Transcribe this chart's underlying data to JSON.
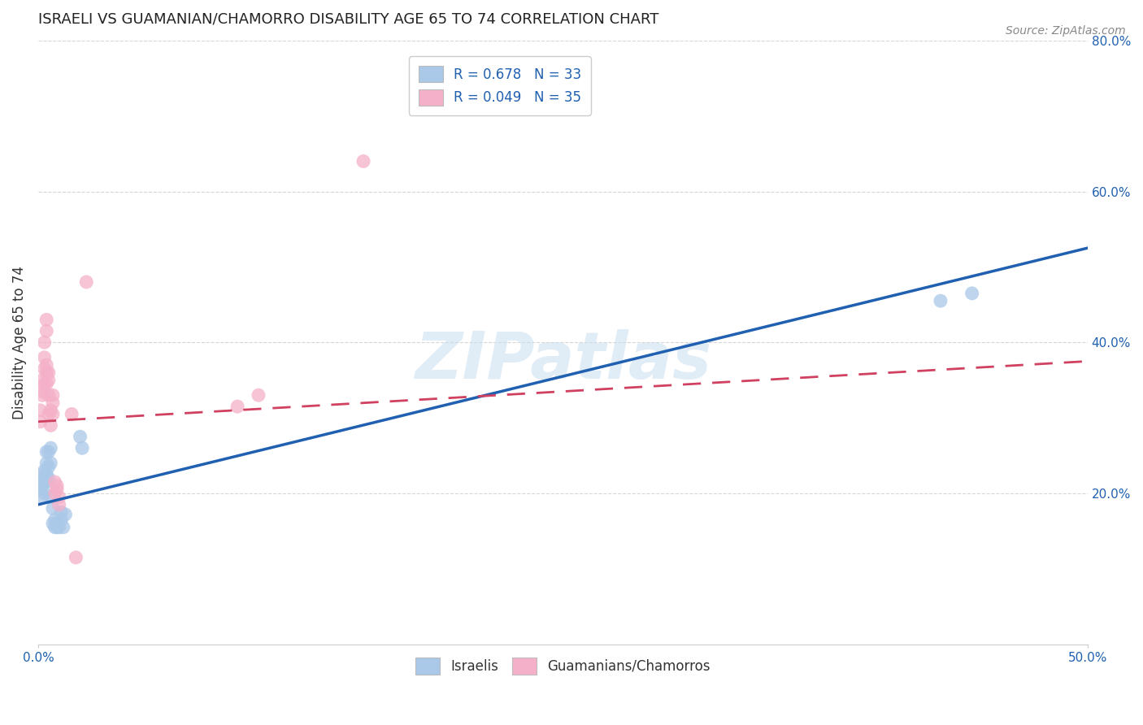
{
  "title": "ISRAELI VS GUAMANIAN/CHAMORRO DISABILITY AGE 65 TO 74 CORRELATION CHART",
  "source": "Source: ZipAtlas.com",
  "ylabel": "Disability Age 65 to 74",
  "xmin": 0.0,
  "xmax": 0.5,
  "ymin": 0.0,
  "ymax": 0.8,
  "xticks": [
    0.0,
    0.5
  ],
  "yticks": [
    0.2,
    0.4,
    0.6,
    0.8
  ],
  "xtick_labels": [
    "0.0%",
    "50.0%"
  ],
  "ytick_labels": [
    "20.0%",
    "40.0%",
    "60.0%",
    "80.0%"
  ],
  "legend_items": [
    {
      "label": "R = 0.678   N = 33",
      "color": "#aac8e8"
    },
    {
      "label": "R = 0.049   N = 35",
      "color": "#f4b0c8"
    }
  ],
  "legend_labels_bottom": [
    "Israelis",
    "Guamanians/Chamorros"
  ],
  "israeli_color": "#aac8e8",
  "guamanian_color": "#f4b0c8",
  "israeli_line_color": "#2060b0",
  "guamanian_line_color": "#d04060",
  "watermark": "ZIPatlas",
  "israeli_R": 0.678,
  "israeli_N": 33,
  "guamanian_R": 0.049,
  "guamanian_N": 35,
  "israeli_line_x0": 0.0,
  "israeli_line_y0": 0.185,
  "israeli_line_x1": 0.5,
  "israeli_line_y1": 0.525,
  "guamanian_line_x0": 0.0,
  "guamanian_line_y0": 0.295,
  "guamanian_line_x1": 0.5,
  "guamanian_line_y1": 0.375,
  "israeli_scatter": [
    [
      0.001,
      0.205
    ],
    [
      0.002,
      0.21
    ],
    [
      0.002,
      0.225
    ],
    [
      0.002,
      0.195
    ],
    [
      0.003,
      0.22
    ],
    [
      0.003,
      0.215
    ],
    [
      0.003,
      0.23
    ],
    [
      0.003,
      0.2
    ],
    [
      0.004,
      0.225
    ],
    [
      0.004,
      0.24
    ],
    [
      0.004,
      0.215
    ],
    [
      0.004,
      0.255
    ],
    [
      0.005,
      0.255
    ],
    [
      0.005,
      0.235
    ],
    [
      0.005,
      0.22
    ],
    [
      0.006,
      0.26
    ],
    [
      0.006,
      0.24
    ],
    [
      0.006,
      0.195
    ],
    [
      0.007,
      0.18
    ],
    [
      0.007,
      0.16
    ],
    [
      0.008,
      0.155
    ],
    [
      0.008,
      0.165
    ],
    [
      0.009,
      0.155
    ],
    [
      0.009,
      0.16
    ],
    [
      0.01,
      0.155
    ],
    [
      0.011,
      0.165
    ],
    [
      0.011,
      0.175
    ],
    [
      0.012,
      0.155
    ],
    [
      0.013,
      0.172
    ],
    [
      0.02,
      0.275
    ],
    [
      0.021,
      0.26
    ],
    [
      0.43,
      0.455
    ],
    [
      0.445,
      0.465
    ]
  ],
  "guamanian_scatter": [
    [
      0.001,
      0.31
    ],
    [
      0.001,
      0.295
    ],
    [
      0.002,
      0.335
    ],
    [
      0.002,
      0.35
    ],
    [
      0.002,
      0.33
    ],
    [
      0.003,
      0.365
    ],
    [
      0.003,
      0.38
    ],
    [
      0.003,
      0.4
    ],
    [
      0.003,
      0.345
    ],
    [
      0.004,
      0.37
    ],
    [
      0.004,
      0.36
    ],
    [
      0.004,
      0.345
    ],
    [
      0.004,
      0.415
    ],
    [
      0.004,
      0.43
    ],
    [
      0.005,
      0.36
    ],
    [
      0.005,
      0.35
    ],
    [
      0.005,
      0.305
    ],
    [
      0.005,
      0.33
    ],
    [
      0.006,
      0.31
    ],
    [
      0.006,
      0.29
    ],
    [
      0.007,
      0.305
    ],
    [
      0.007,
      0.32
    ],
    [
      0.007,
      0.33
    ],
    [
      0.008,
      0.2
    ],
    [
      0.008,
      0.215
    ],
    [
      0.009,
      0.205
    ],
    [
      0.009,
      0.21
    ],
    [
      0.01,
      0.195
    ],
    [
      0.01,
      0.185
    ],
    [
      0.016,
      0.305
    ],
    [
      0.018,
      0.115
    ],
    [
      0.023,
      0.48
    ],
    [
      0.095,
      0.315
    ],
    [
      0.105,
      0.33
    ],
    [
      0.155,
      0.64
    ]
  ]
}
